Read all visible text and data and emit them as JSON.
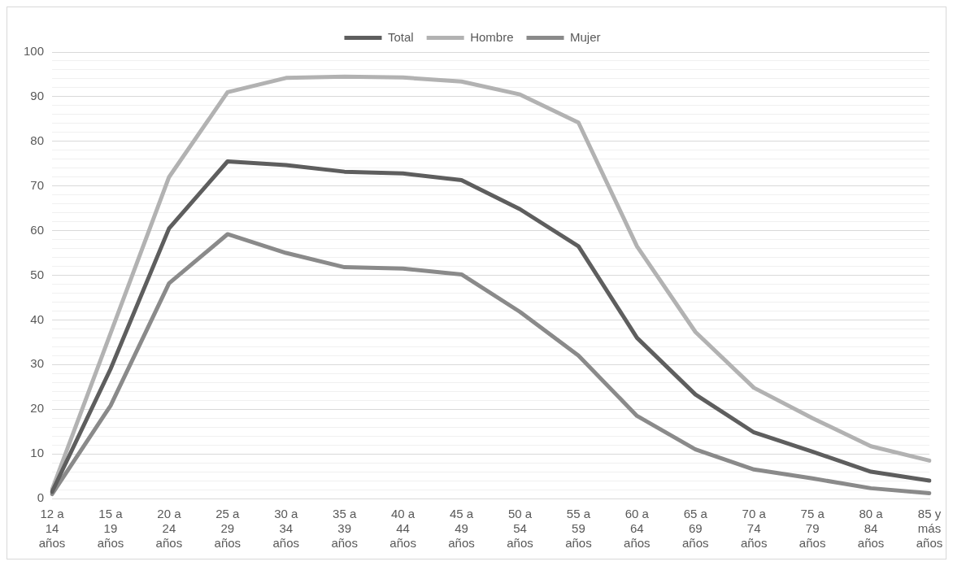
{
  "chart_data": {
    "type": "line",
    "categories": [
      "12 a 14 años",
      "15 a 19 años",
      "20 a 24 años",
      "25 a 29 años",
      "30 a 34 años",
      "35 a 39 años",
      "40 a 44 años",
      "45 a 49 años",
      "50 a 54 años",
      "55 a 59 años",
      "60 a 64 años",
      "65 a 69 años",
      "70 a 74 años",
      "75 a 79 años",
      "80 a 84 años",
      "85 y más años"
    ],
    "series": [
      {
        "name": "Total",
        "color": "#5e5e5e",
        "values": [
          1.5,
          29,
          60.5,
          75.5,
          74.7,
          73.2,
          72.8,
          71.3,
          64.8,
          56.5,
          36,
          23.3,
          14.8,
          10.5,
          6,
          4
        ]
      },
      {
        "name": "Hombre",
        "color": "#b2b2b2",
        "values": [
          2,
          37,
          72,
          91,
          94.2,
          94.5,
          94.3,
          93.4,
          90.5,
          84.2,
          56.5,
          37.3,
          24.8,
          18,
          11.7,
          8.5
        ]
      },
      {
        "name": "Mujer",
        "color": "#8a8a8a",
        "values": [
          1,
          20.8,
          48.2,
          59.2,
          55,
          51.8,
          51.5,
          50.2,
          41.8,
          32,
          18.5,
          11,
          6.5,
          4.5,
          2.3,
          1.2
        ]
      }
    ],
    "ylim": [
      0,
      100
    ],
    "yticks": [
      0,
      {
        "value": 2,
        "label": null
      },
      {
        "value": 4,
        "label": null
      },
      {
        "value": 6,
        "label": null
      },
      {
        "value": 8,
        "label": null
      },
      10,
      {
        "value": 12,
        "label": null
      },
      {
        "value": 14,
        "label": null
      },
      {
        "value": 16,
        "label": null
      },
      {
        "value": 18,
        "label": null
      },
      20,
      {
        "value": 22,
        "label": null
      },
      {
        "value": 24,
        "label": null
      },
      {
        "value": 26,
        "label": null
      },
      {
        "value": 28,
        "label": null
      },
      30,
      {
        "value": 32,
        "label": null
      },
      {
        "value": 34,
        "label": null
      },
      {
        "value": 36,
        "label": null
      },
      {
        "value": 38,
        "label": null
      },
      40,
      {
        "value": 42,
        "label": null
      },
      {
        "value": 44,
        "label": null
      },
      {
        "value": 46,
        "label": null
      },
      {
        "value": 48,
        "label": null
      },
      50,
      {
        "value": 52,
        "label": null
      },
      {
        "value": 54,
        "label": null
      },
      {
        "value": 56,
        "label": null
      },
      {
        "value": 58,
        "label": null
      },
      60,
      {
        "value": 62,
        "label": null
      },
      {
        "value": 64,
        "label": null
      },
      {
        "value": 66,
        "label": null
      },
      {
        "value": 68,
        "label": null
      },
      70,
      {
        "value": 72,
        "label": null
      },
      {
        "value": 74,
        "label": null
      },
      {
        "value": 76,
        "label": null
      },
      {
        "value": 78,
        "label": null
      },
      80,
      {
        "value": 82,
        "label": null
      },
      {
        "value": 84,
        "label": null
      },
      {
        "value": 86,
        "label": null
      },
      {
        "value": 88,
        "label": null
      },
      90,
      {
        "value": 92,
        "label": null
      },
      {
        "value": 94,
        "label": null
      },
      {
        "value": 96,
        "label": null
      },
      {
        "value": 98,
        "label": null
      },
      100
    ],
    "grid": "y",
    "legend": "top",
    "marker": "none",
    "line_style": "solid"
  }
}
